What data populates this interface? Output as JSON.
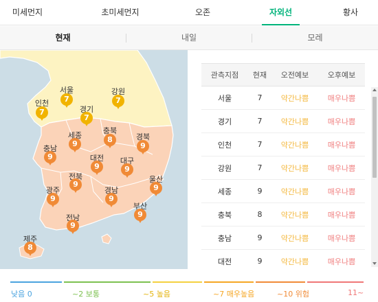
{
  "tabs": [
    {
      "label": "미세먼지",
      "active": false
    },
    {
      "label": "초미세먼지",
      "active": false
    },
    {
      "label": "오존",
      "active": false
    },
    {
      "label": "자외선",
      "active": true
    },
    {
      "label": "황사",
      "active": false
    }
  ],
  "subtabs": [
    {
      "label": "현재",
      "active": true
    },
    {
      "label": "내일",
      "active": false
    },
    {
      "label": "모레",
      "active": false
    }
  ],
  "map": {
    "regions": [
      {
        "name": "서울",
        "value": "7",
        "level": "high"
      },
      {
        "name": "강원",
        "value": "7",
        "level": "high"
      },
      {
        "name": "인천",
        "value": "7",
        "level": "high"
      },
      {
        "name": "경기",
        "value": "7",
        "level": "high"
      },
      {
        "name": "세종",
        "value": "9",
        "level": "vhigh"
      },
      {
        "name": "충북",
        "value": "8",
        "level": "vhigh"
      },
      {
        "name": "경북",
        "value": "9",
        "level": "vhigh"
      },
      {
        "name": "충남",
        "value": "9",
        "level": "vhigh"
      },
      {
        "name": "대전",
        "value": "9",
        "level": "vhigh"
      },
      {
        "name": "대구",
        "value": "9",
        "level": "vhigh"
      },
      {
        "name": "전북",
        "value": "9",
        "level": "vhigh"
      },
      {
        "name": "울산",
        "value": "9",
        "level": "vhigh"
      },
      {
        "name": "광주",
        "value": "9",
        "level": "vhigh"
      },
      {
        "name": "경남",
        "value": "9",
        "level": "vhigh"
      },
      {
        "name": "부산",
        "value": "9",
        "level": "vhigh"
      },
      {
        "name": "전남",
        "value": "9",
        "level": "vhigh"
      },
      {
        "name": "제주",
        "value": "8",
        "level": "vhigh"
      }
    ]
  },
  "table": {
    "headers": [
      "관측지점",
      "현재",
      "오전예보",
      "오후예보"
    ],
    "rows": [
      {
        "region": "서울",
        "current": "7",
        "am": "약간나쁨",
        "pm": "매우나쁨"
      },
      {
        "region": "경기",
        "current": "7",
        "am": "약간나쁨",
        "pm": "매우나쁨"
      },
      {
        "region": "인천",
        "current": "7",
        "am": "약간나쁨",
        "pm": "매우나쁨"
      },
      {
        "region": "강원",
        "current": "7",
        "am": "약간나쁨",
        "pm": "매우나쁨"
      },
      {
        "region": "세종",
        "current": "9",
        "am": "약간나쁨",
        "pm": "매우나쁨"
      },
      {
        "region": "충북",
        "current": "8",
        "am": "약간나쁨",
        "pm": "매우나쁨"
      },
      {
        "region": "충남",
        "current": "9",
        "am": "약간나쁨",
        "pm": "매우나쁨"
      },
      {
        "region": "대전",
        "current": "9",
        "am": "약간나쁨",
        "pm": "매우나쁨"
      }
    ]
  },
  "legend": [
    {
      "label": "낮음 0",
      "color": "#4aa3df"
    },
    {
      "label": "~2 보통",
      "color": "#7cc04f"
    },
    {
      "label": "~5 높음",
      "color": "#f4d03f"
    },
    {
      "label": "~7 매우높음",
      "color": "#f5a623"
    },
    {
      "label": "~10 위험",
      "color": "#f08a36"
    },
    {
      "label": "11~",
      "color": "#ef7676"
    }
  ],
  "colors": {
    "accent": "#00b37a",
    "level_high": "#f1b300",
    "level_very_high": "#f08a36",
    "map_north": "#fdf3c2",
    "map_south": "#fbd3b8",
    "sea": "#ccdde6"
  }
}
